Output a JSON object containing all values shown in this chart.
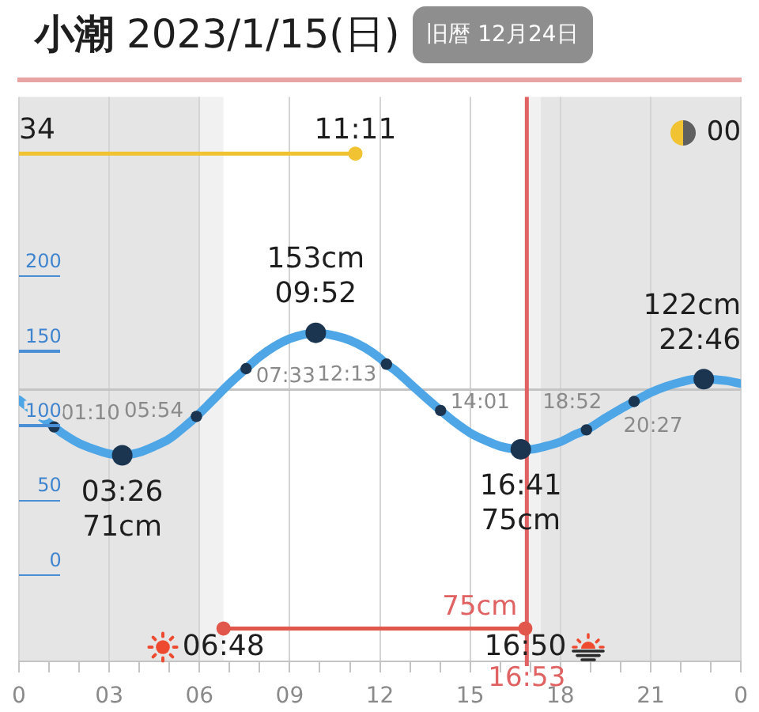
{
  "chart_data": {
    "type": "line",
    "title": "小潮",
    "subtitle": "2023/1/15(日)",
    "xlim": [
      "2023-01-15T00:00",
      "2023-01-16T00:00"
    ],
    "ylim": [
      -67,
      311
    ],
    "xticks": [
      {
        "value": "2023-01-15T00:00",
        "label": "0"
      },
      {
        "value": "2023-01-15T01:00",
        "label": null
      },
      {
        "value": "2023-01-15T02:00",
        "label": null
      },
      {
        "value": "2023-01-15T03:00",
        "label": "03"
      },
      {
        "value": "2023-01-15T04:00",
        "label": null
      },
      {
        "value": "2023-01-15T05:00",
        "label": null
      },
      {
        "value": "2023-01-15T06:00",
        "label": "06"
      },
      {
        "value": "2023-01-15T07:00",
        "label": null
      },
      {
        "value": "2023-01-15T08:00",
        "label": null
      },
      {
        "value": "2023-01-15T09:00",
        "label": "09"
      },
      {
        "value": "2023-01-15T10:00",
        "label": null
      },
      {
        "value": "2023-01-15T11:00",
        "label": null
      },
      {
        "value": "2023-01-15T12:00",
        "label": "12"
      },
      {
        "value": "2023-01-15T13:00",
        "label": null
      },
      {
        "value": "2023-01-15T14:00",
        "label": null
      },
      {
        "value": "2023-01-15T15:00",
        "label": "15"
      },
      {
        "value": "2023-01-15T16:00",
        "label": null
      },
      {
        "value": "2023-01-15T17:00",
        "label": null
      },
      {
        "value": "2023-01-15T18:00",
        "label": "18"
      },
      {
        "value": "2023-01-15T19:00",
        "label": null
      },
      {
        "value": "2023-01-15T20:00",
        "label": null
      },
      {
        "value": "2023-01-15T21:00",
        "label": "21"
      },
      {
        "value": "2023-01-15T22:00",
        "label": null
      },
      {
        "value": "2023-01-15T23:00",
        "label": null
      },
      {
        "value": "2023-01-16T00:00",
        "label": "0"
      }
    ],
    "yticks": [
      0,
      50,
      100,
      150,
      200
    ],
    "grid": "x",
    "series": [
      {
        "color": "#4ea6e6",
        "marker": "none",
        "x": [
          "2023-01-15T00:00",
          "2023-01-15T01:10",
          "2023-01-15T01:30",
          "2023-01-15T02:00",
          "2023-01-15T02:30",
          "2023-01-15T03:00",
          "2023-01-15T03:26",
          "2023-01-15T04:00",
          "2023-01-15T04:30",
          "2023-01-15T05:00",
          "2023-01-15T05:30",
          "2023-01-15T05:54",
          "2023-01-15T06:30",
          "2023-01-15T07:00",
          "2023-01-15T07:33",
          "2023-01-15T08:00",
          "2023-01-15T08:30",
          "2023-01-15T09:00",
          "2023-01-15T09:30",
          "2023-01-15T09:52",
          "2023-01-15T10:30",
          "2023-01-15T11:00",
          "2023-01-15T11:30",
          "2023-01-15T12:00",
          "2023-01-15T12:13",
          "2023-01-15T12:30",
          "2023-01-15T13:00",
          "2023-01-15T13:30",
          "2023-01-15T14:01",
          "2023-01-15T14:30",
          "2023-01-15T15:00",
          "2023-01-15T15:30",
          "2023-01-15T16:00",
          "2023-01-15T16:41",
          "2023-01-15T17:00",
          "2023-01-15T17:30",
          "2023-01-15T18:00",
          "2023-01-15T18:30",
          "2023-01-15T18:52",
          "2023-01-15T19:30",
          "2023-01-15T20:00",
          "2023-01-15T20:27",
          "2023-01-15T21:00",
          "2023-01-15T21:30",
          "2023-01-15T22:00",
          "2023-01-15T22:30",
          "2023-01-15T22:46",
          "2023-01-15T23:30",
          "2023-01-16T00:00"
        ],
        "values": [
          108,
          90,
          85,
          79,
          75,
          72,
          71,
          73,
          77,
          82,
          90,
          97,
          109,
          119,
          129,
          137,
          144,
          149,
          152,
          153,
          151,
          148,
          143,
          136,
          132,
          128,
          119,
          110,
          101,
          93,
          86,
          81,
          77,
          75,
          75,
          77,
          80,
          85,
          88,
          96,
          102,
          107,
          113,
          117,
          120,
          122,
          122,
          121,
          119
        ]
      },
      {
        "type": "scatter",
        "color": "#1b3550",
        "marker": "circle",
        "x": [
          "2023-01-15T03:26",
          "2023-01-15T09:52",
          "2023-01-15T16:41",
          "2023-01-15T22:46"
        ],
        "values": [
          71,
          153,
          75,
          122
        ],
        "value_labels": [
          "03:26\n71cm",
          "153cm\n09:52",
          "16:41\n75cm",
          "122cm\n22:46"
        ]
      },
      {
        "type": "scatter",
        "color": "#1b3550",
        "marker": "circle",
        "x": [
          "2023-01-15T01:10",
          "2023-01-15T05:54",
          "2023-01-15T07:33",
          "2023-01-15T12:13",
          "2023-01-15T14:01",
          "2023-01-15T18:52",
          "2023-01-15T20:27"
        ],
        "values": [
          90,
          97,
          129,
          132,
          101,
          88,
          107
        ]
      },
      {
        "color": "#e2574c",
        "marker": "circle",
        "x": [
          "2023-01-15T06:48",
          "2023-01-15T16:50"
        ],
        "values": [
          -45,
          -45
        ]
      },
      {
        "color": "#f1c232",
        "marker": "circle",
        "x": [
          "2023-01-15T00:00",
          "2023-01-15T11:11"
        ],
        "values": [
          273,
          273
        ]
      }
    ],
    "ref_lines": [
      {
        "axis": "y",
        "value": 115,
        "color": "#c4c4c4"
      },
      {
        "axis": "x",
        "value": "2023-01-15T16:53",
        "label": "16:53",
        "color": "#e06262"
      }
    ],
    "bands": [
      {
        "axis": "x",
        "from": "2023-01-15T00:00",
        "to": "2023-01-15T06:00",
        "color": "#e5e5e5"
      },
      {
        "axis": "x",
        "from": "2023-01-15T06:00",
        "to": "2023-01-15T06:48",
        "color": "#f1f1f1"
      },
      {
        "axis": "x",
        "from": "2023-01-15T16:50",
        "to": "2023-01-15T17:21",
        "color": "#f1f1f1"
      },
      {
        "axis": "x",
        "from": "2023-01-15T17:21",
        "to": "2023-01-16T00:00",
        "color": "#e5e5e5"
      }
    ],
    "annotations": [
      "旧暦 12月24日",
      {
        "text": "01:10",
        "x": "2023-01-15T01:10",
        "y": 90
      },
      {
        "text": "05:54",
        "x": "2023-01-15T05:54",
        "y": 97
      },
      {
        "text": "07:33",
        "x": "2023-01-15T07:33",
        "y": 129
      },
      {
        "text": "12:13",
        "x": "2023-01-15T12:13",
        "y": 132
      },
      {
        "text": "14:01",
        "x": "2023-01-15T14:01",
        "y": 101
      },
      {
        "text": "18:52",
        "x": "2023-01-15T18:52",
        "y": 88
      },
      {
        "text": "20:27",
        "x": "2023-01-15T20:27",
        "y": 107
      },
      {
        "text": "06:48",
        "x": "2023-01-15T06:48",
        "y": -45
      },
      {
        "text": "16:50",
        "x": "2023-01-15T16:50",
        "y": -45
      },
      {
        "text": "34",
        "x": "2023-01-15T00:00",
        "y": 273
      },
      {
        "text": "11:11",
        "x": "2023-01-15T11:11",
        "y": 273
      },
      {
        "text": "75cm",
        "x": "2023-01-15T16:53",
        "y": -45
      },
      {
        "text": "00",
        "x": "2023-01-16T00:00",
        "y": 273
      }
    ]
  }
}
